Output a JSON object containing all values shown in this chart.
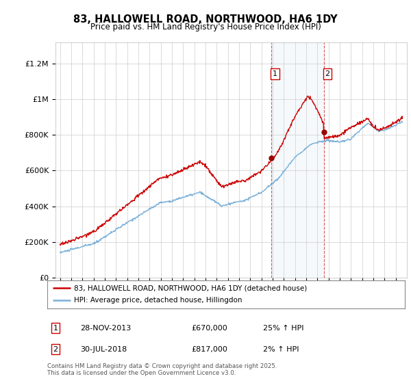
{
  "title": "83, HALLOWELL ROAD, NORTHWOOD, HA6 1DY",
  "subtitle": "Price paid vs. HM Land Registry's House Price Index (HPI)",
  "ylabel_ticks": [
    "£0",
    "£200K",
    "£400K",
    "£600K",
    "£800K",
    "£1M",
    "£1.2M"
  ],
  "ylim": [
    0,
    1320000
  ],
  "xlim_start": 1994.6,
  "xlim_end": 2026.0,
  "sale1_date": 2013.91,
  "sale1_price": 670000,
  "sale1_label": "1",
  "sale2_date": 2018.58,
  "sale2_price": 817000,
  "sale2_label": "2",
  "hpi_color": "#7ab0d8",
  "price_color": "#cc0000",
  "sale_marker_color": "#990000",
  "legend_line1": "83, HALLOWELL ROAD, NORTHWOOD, HA6 1DY (detached house)",
  "legend_line2": "HPI: Average price, detached house, Hillingdon",
  "info1_label": "1",
  "info1_date": "28-NOV-2013",
  "info1_price": "£670,000",
  "info1_hpi": "25% ↑ HPI",
  "info2_label": "2",
  "info2_date": "30-JUL-2018",
  "info2_price": "£817,000",
  "info2_hpi": "2% ↑ HPI",
  "footnote": "Contains HM Land Registry data © Crown copyright and database right 2025.\nThis data is licensed under the Open Government Licence v3.0.",
  "background_color": "#ffffff",
  "grid_color": "#cccccc",
  "shade_color": "#daeaf5"
}
